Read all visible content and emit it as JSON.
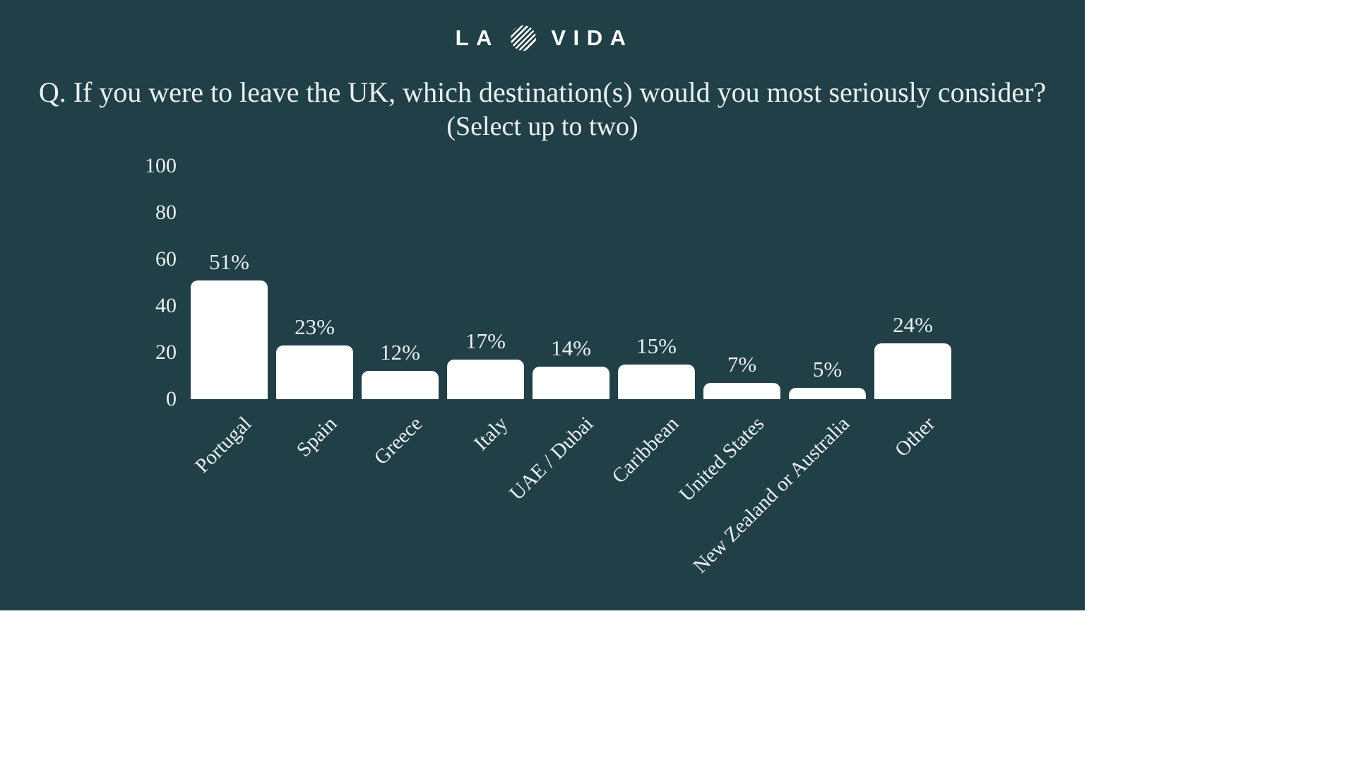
{
  "slide": {
    "background_color": "#213F46",
    "text_color": "#E9F1F1",
    "bar_color": "#FFFFFF"
  },
  "logo": {
    "left_text": "LA",
    "right_text": "VIDA",
    "icon": "striped-circle-icon"
  },
  "title": {
    "line1": "Q. If you were to leave the UK, which destination(s) would you most seriously consider?",
    "line2": "(Select up to two)"
  },
  "chart_data": {
    "type": "bar",
    "title": "Q. If you were to leave the UK, which destination(s) would you most seriously consider? (Select up to two)",
    "categories": [
      "Portugal",
      "Spain",
      "Greece",
      "Italy",
      "UAE / Dubai",
      "Caribbean",
      "United States",
      "New Zealand or Australia",
      "Other"
    ],
    "values": [
      51,
      23,
      12,
      17,
      14,
      15,
      7,
      5,
      24
    ],
    "value_labels": [
      "51%",
      "23%",
      "12%",
      "17%",
      "14%",
      "15%",
      "7%",
      "5%",
      "24%"
    ],
    "xlabel": "",
    "ylabel": "",
    "ylim": [
      0,
      100
    ],
    "yticks": [
      0,
      20,
      40,
      60,
      80,
      100
    ],
    "grid": false,
    "legend": "none",
    "bar_style": "rounded-top",
    "x_tick_rotation_deg": 45
  }
}
